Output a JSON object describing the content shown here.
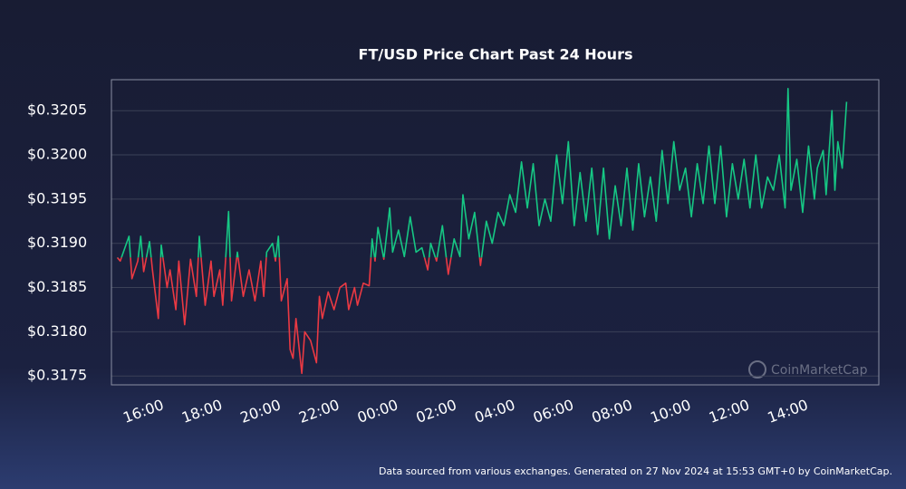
{
  "chart_data": {
    "type": "line",
    "title": "FT/USD Price Chart Past 24 Hours",
    "footer": "Data sourced from various exchanges. Generated on 27 Nov 2024 at 15:53 GMT+0 by CoinMarketCap.",
    "watermark": "CoinMarketCap",
    "color_up": "#16c784",
    "color_down": "#ea3943",
    "grid": true,
    "xlim": [
      14.9,
      41.1
    ],
    "ylim": [
      0.3174,
      0.32085
    ],
    "xticks": [
      {
        "value": 16,
        "label": "16:00"
      },
      {
        "value": 18,
        "label": "18:00"
      },
      {
        "value": 20,
        "label": "20:00"
      },
      {
        "value": 22,
        "label": "22:00"
      },
      {
        "value": 24,
        "label": "00:00"
      },
      {
        "value": 26,
        "label": "02:00"
      },
      {
        "value": 28,
        "label": "04:00"
      },
      {
        "value": 30,
        "label": "06:00"
      },
      {
        "value": 32,
        "label": "08:00"
      },
      {
        "value": 34,
        "label": "10:00"
      },
      {
        "value": 36,
        "label": "12:00"
      },
      {
        "value": 38,
        "label": "14:00"
      }
    ],
    "yticks": [
      {
        "value": 0.3175,
        "label": "$0.3175"
      },
      {
        "value": 0.318,
        "label": "$0.3180"
      },
      {
        "value": 0.3185,
        "label": "$0.3185"
      },
      {
        "value": 0.319,
        "label": "$0.3190"
      },
      {
        "value": 0.3195,
        "label": "$0.3195"
      },
      {
        "value": 0.32,
        "label": "$0.3200"
      },
      {
        "value": 0.3205,
        "label": "$0.3205"
      }
    ],
    "x": [
      15.1,
      15.2,
      15.5,
      15.6,
      15.8,
      15.9,
      16.0,
      16.2,
      16.3,
      16.5,
      16.6,
      16.8,
      16.9,
      17.1,
      17.2,
      17.4,
      17.6,
      17.8,
      17.9,
      18.1,
      18.3,
      18.4,
      18.6,
      18.7,
      18.9,
      19.0,
      19.2,
      19.4,
      19.6,
      19.8,
      20.0,
      20.1,
      20.2,
      20.4,
      20.5,
      20.6,
      20.7,
      20.9,
      21.0,
      21.1,
      21.2,
      21.4,
      21.5,
      21.7,
      21.9,
      22.0,
      22.1,
      22.3,
      22.5,
      22.7,
      22.9,
      23.0,
      23.2,
      23.3,
      23.5,
      23.7,
      23.8,
      23.9,
      24.0,
      24.2,
      24.4,
      24.5,
      24.7,
      24.9,
      25.1,
      25.3,
      25.5,
      25.7,
      25.8,
      26.0,
      26.2,
      26.4,
      26.6,
      26.8,
      26.9,
      27.1,
      27.3,
      27.5,
      27.7,
      27.9,
      28.1,
      28.3,
      28.5,
      28.7,
      28.9,
      29.1,
      29.3,
      29.5,
      29.7,
      29.9,
      30.1,
      30.3,
      30.5,
      30.7,
      30.9,
      31.1,
      31.3,
      31.5,
      31.7,
      31.9,
      32.1,
      32.3,
      32.5,
      32.7,
      32.9,
      33.1,
      33.3,
      33.5,
      33.7,
      33.9,
      34.1,
      34.3,
      34.5,
      34.7,
      34.9,
      35.1,
      35.3,
      35.5,
      35.7,
      35.9,
      36.1,
      36.3,
      36.5,
      36.7,
      36.9,
      37.1,
      37.3,
      37.5,
      37.7,
      37.9,
      38.0,
      38.1,
      38.3,
      38.5,
      38.7,
      38.9,
      39.0,
      39.2,
      39.3,
      39.5,
      39.6,
      39.7,
      39.85,
      40.0
    ],
    "values": [
      0.31884,
      0.3188,
      0.31908,
      0.3186,
      0.3188,
      0.31908,
      0.31868,
      0.31902,
      0.3187,
      0.31815,
      0.31898,
      0.3185,
      0.3187,
      0.31825,
      0.3188,
      0.31808,
      0.31882,
      0.3184,
      0.31908,
      0.3183,
      0.3188,
      0.3184,
      0.3187,
      0.3183,
      0.31936,
      0.31835,
      0.3189,
      0.3184,
      0.3187,
      0.31835,
      0.3188,
      0.3184,
      0.3189,
      0.319,
      0.3188,
      0.31908,
      0.31835,
      0.3186,
      0.3178,
      0.3177,
      0.31815,
      0.31753,
      0.318,
      0.3179,
      0.31765,
      0.3184,
      0.31815,
      0.31845,
      0.31825,
      0.3185,
      0.31855,
      0.31825,
      0.3185,
      0.3183,
      0.31855,
      0.31852,
      0.31905,
      0.3188,
      0.31918,
      0.31882,
      0.3194,
      0.3189,
      0.31915,
      0.31885,
      0.3193,
      0.3189,
      0.31895,
      0.3187,
      0.319,
      0.3188,
      0.3192,
      0.31865,
      0.31905,
      0.31885,
      0.31955,
      0.31905,
      0.31935,
      0.31875,
      0.31925,
      0.319,
      0.31935,
      0.3192,
      0.31955,
      0.31935,
      0.31992,
      0.3194,
      0.3199,
      0.3192,
      0.3195,
      0.31925,
      0.32,
      0.31945,
      0.32015,
      0.3192,
      0.3198,
      0.31925,
      0.31985,
      0.3191,
      0.31985,
      0.31905,
      0.31965,
      0.3192,
      0.31985,
      0.31915,
      0.3199,
      0.3193,
      0.31975,
      0.31925,
      0.32005,
      0.31945,
      0.32015,
      0.3196,
      0.31985,
      0.3193,
      0.3199,
      0.31945,
      0.3201,
      0.31945,
      0.3201,
      0.3193,
      0.3199,
      0.3195,
      0.31995,
      0.3194,
      0.32,
      0.3194,
      0.31975,
      0.3196,
      0.32,
      0.3194,
      0.32075,
      0.3196,
      0.31995,
      0.31935,
      0.3201,
      0.3195,
      0.31985,
      0.32005,
      0.31955,
      0.3205,
      0.3196,
      0.32015,
      0.31985,
      0.3206
    ]
  }
}
